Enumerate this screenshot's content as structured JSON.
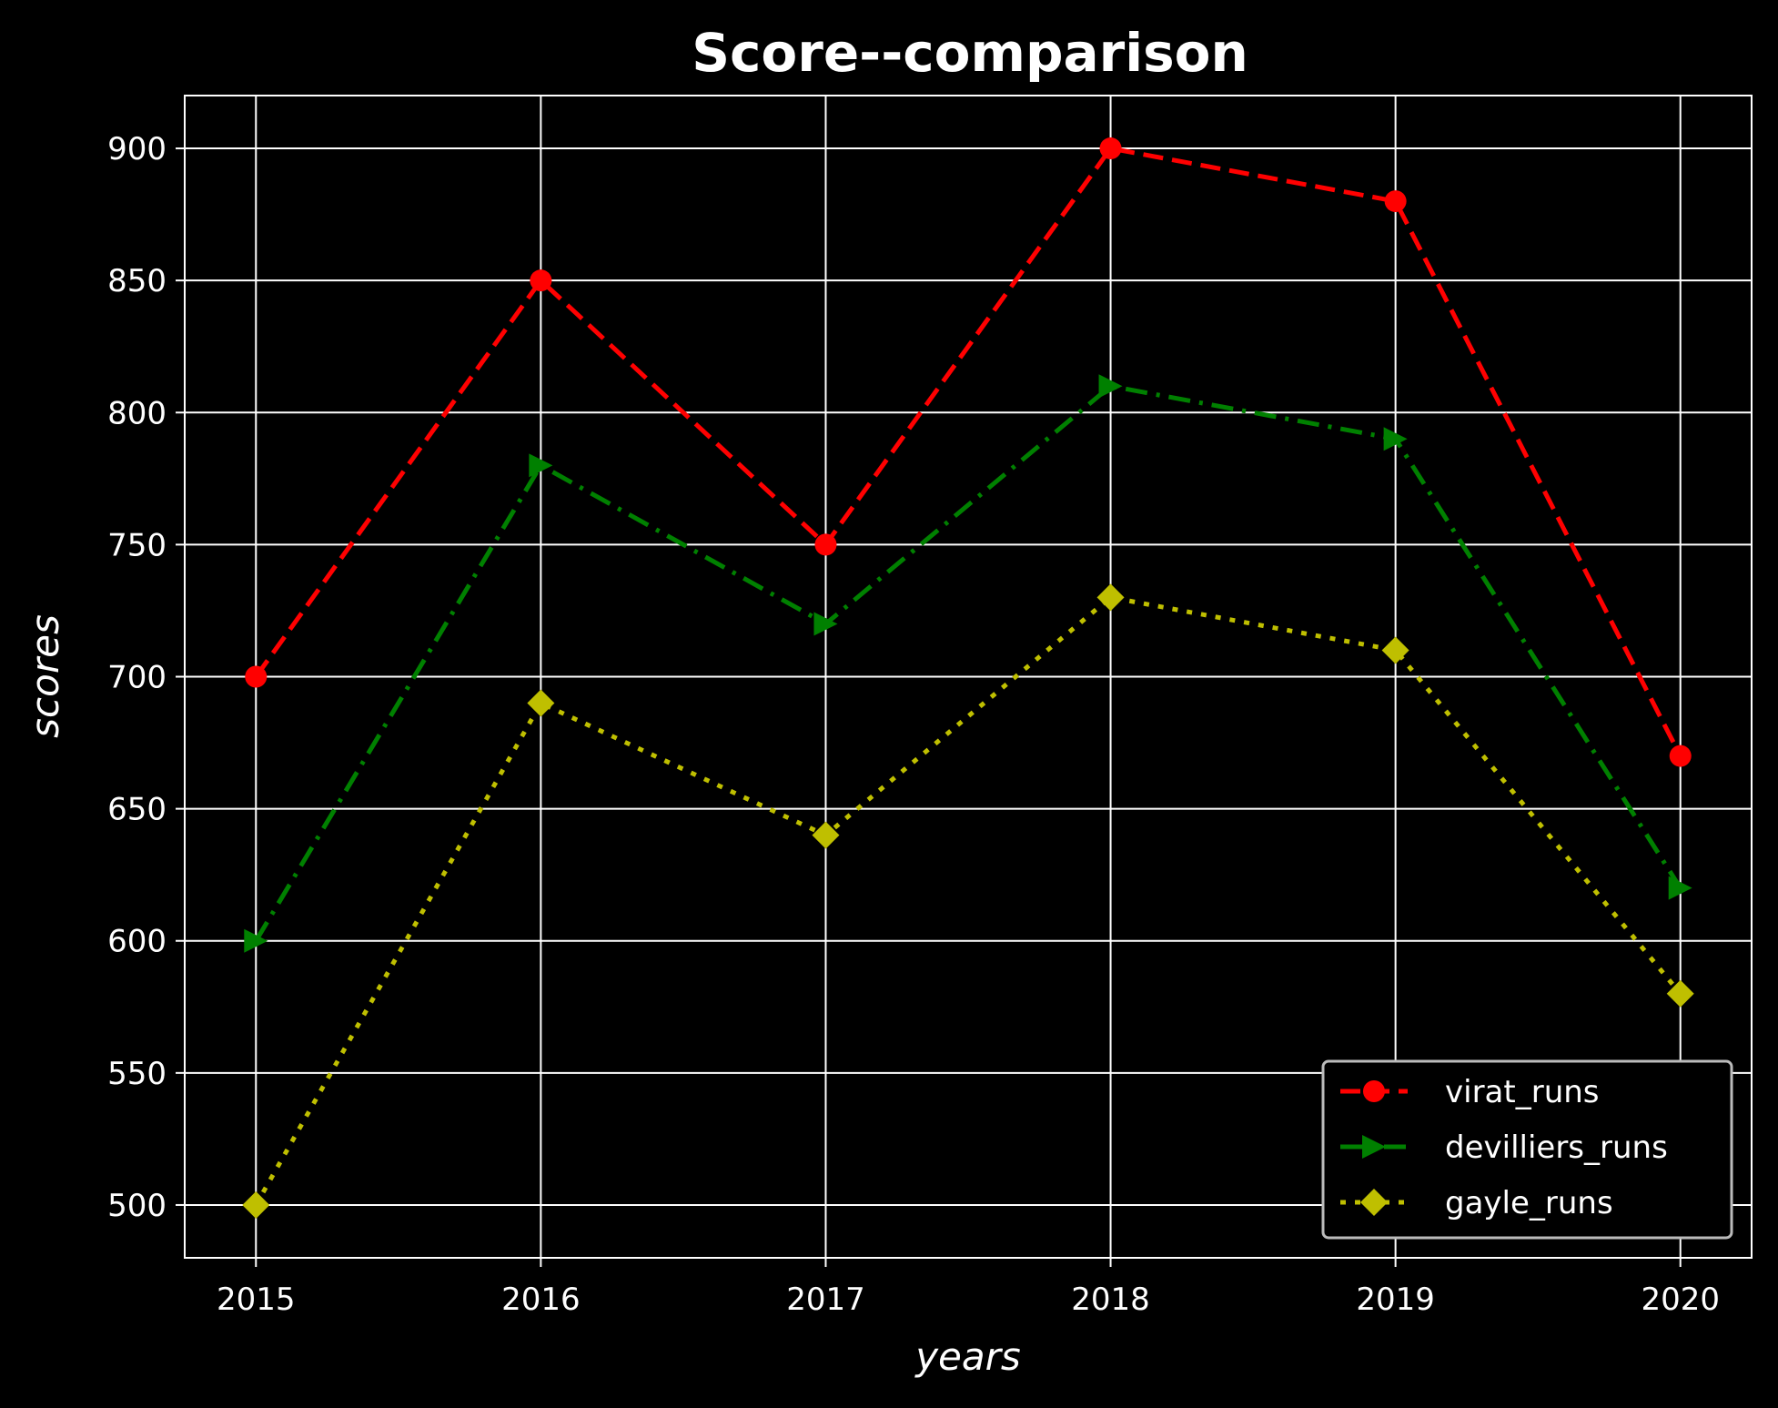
{
  "chart_data": {
    "type": "line",
    "title": "Score--comparison",
    "xlabel": "years",
    "ylabel": "scores",
    "x": [
      2015,
      2016,
      2017,
      2018,
      2019,
      2020
    ],
    "xlim": [
      2014.75,
      2020.25
    ],
    "ylim": [
      480,
      920
    ],
    "yticks": [
      500,
      550,
      600,
      650,
      700,
      750,
      800,
      850,
      900
    ],
    "grid": true,
    "background": "#000000",
    "foreground": "#ffffff",
    "legend_position": "lower right",
    "series": [
      {
        "name": "virat_runs",
        "values": [
          700,
          850,
          750,
          900,
          880,
          670
        ],
        "color": "#ff0000",
        "linestyle": "dashed",
        "marker": "circle"
      },
      {
        "name": "devilliers_runs",
        "values": [
          600,
          780,
          720,
          810,
          790,
          620
        ],
        "color": "#008000",
        "linestyle": "dashdot",
        "marker": "triangle-right"
      },
      {
        "name": "gayle_runs",
        "values": [
          500,
          690,
          640,
          730,
          710,
          580
        ],
        "color": "#bfbf00",
        "linestyle": "dotted",
        "marker": "diamond"
      }
    ]
  }
}
